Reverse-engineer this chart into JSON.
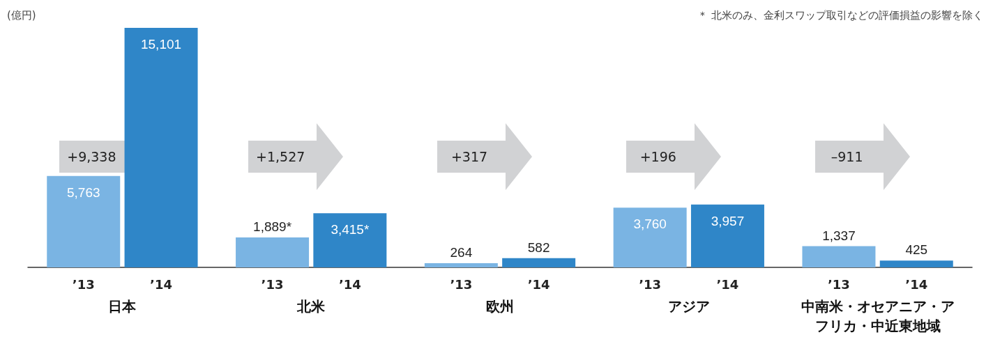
{
  "chart_data": {
    "type": "bar",
    "ylabel": "(億円)",
    "categories": [
      "日本",
      "北米",
      "欧州",
      "アジア",
      "中南米・オセアニア・アフリカ・中近東地域"
    ],
    "series": [
      {
        "name": "’13",
        "color": "#7ab4e3",
        "values": [
          5763,
          1889,
          264,
          3760,
          1337
        ],
        "value_labels": [
          "5,763",
          "1,889*",
          "264",
          "3,760",
          "1,337"
        ]
      },
      {
        "name": "’14",
        "color": "#2f86c8",
        "values": [
          15101,
          3415,
          582,
          3957,
          425
        ],
        "value_labels": [
          "15,101",
          "3,415*",
          "582",
          "3,957",
          "425"
        ]
      }
    ],
    "annotations": [
      "+9,338",
      "+1,527",
      "+317",
      "+196",
      "–911",
      "＊ 北米のみ、金利スワップ取引などの評価損益の影響を除く"
    ],
    "legend": false
  }
}
